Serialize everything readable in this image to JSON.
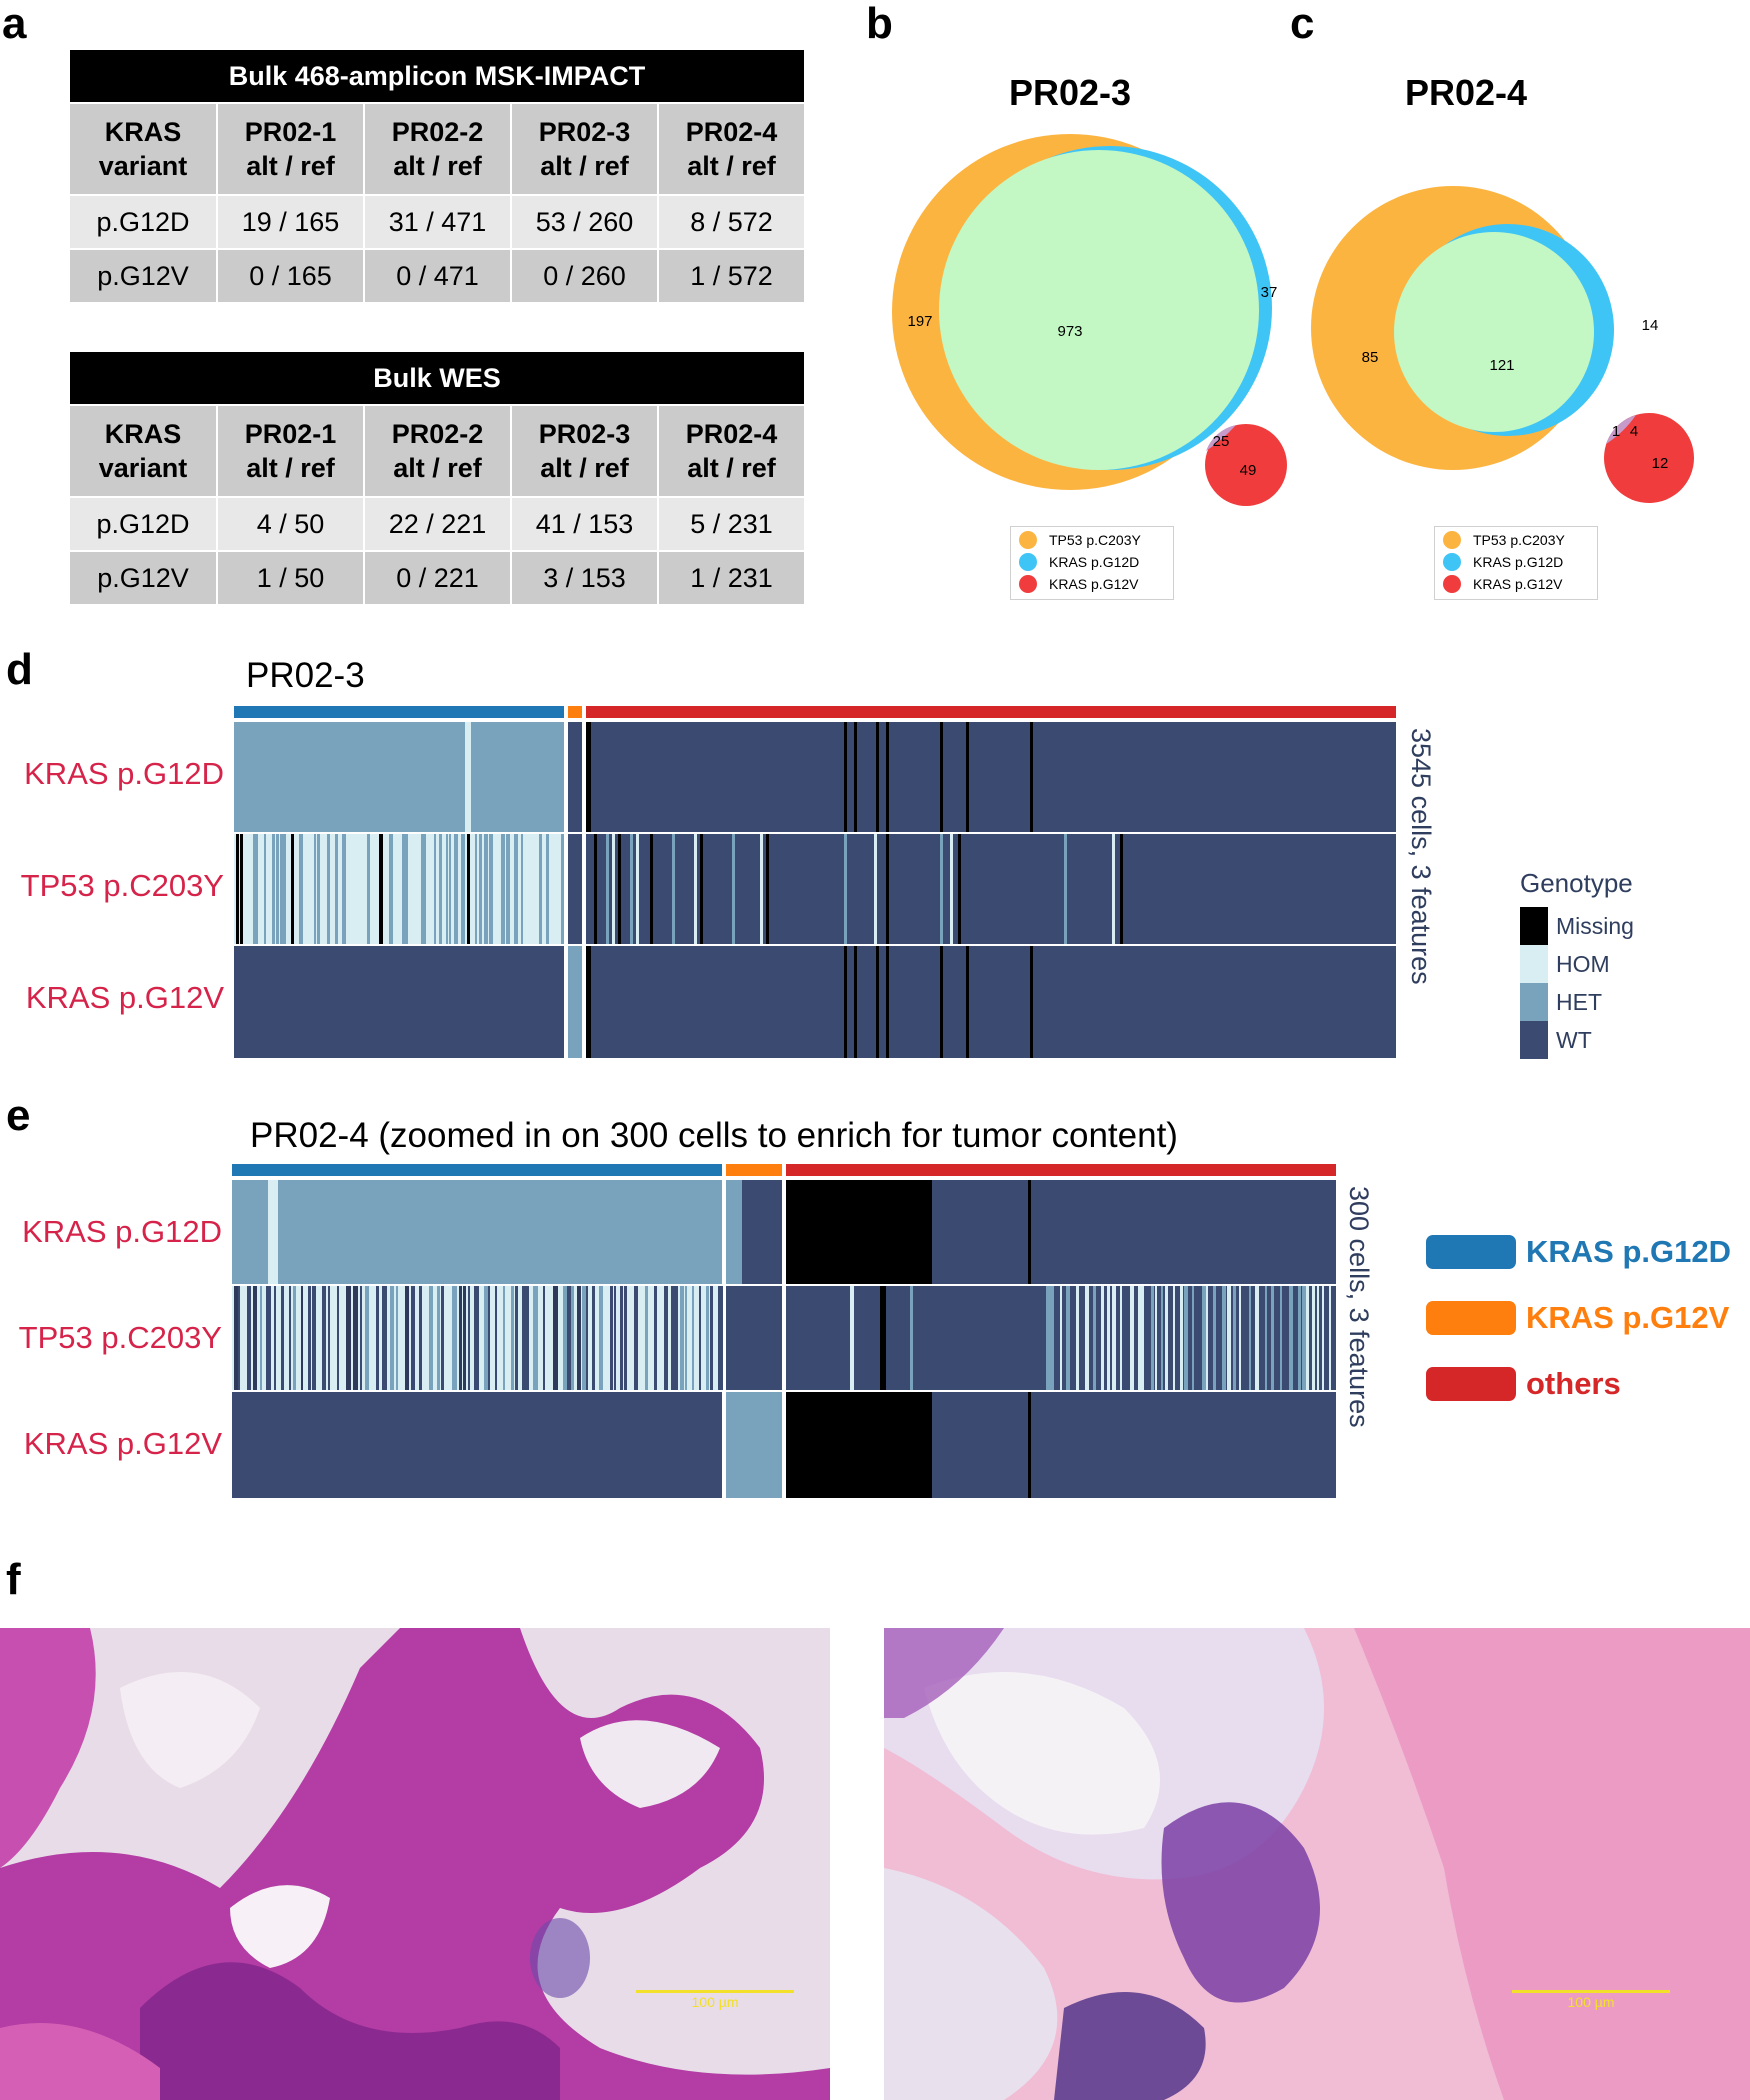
{
  "panel_labels": {
    "a": "a",
    "b": "b",
    "c": "c",
    "d": "d",
    "e": "e",
    "f": "f"
  },
  "colors": {
    "tp53": "#fcb441",
    "kras_g12d": "#3fc4f6",
    "kras_g12v": "#f03c3c",
    "overlap_green": "#c3f8c4",
    "missing": "#000000",
    "hom": "#d9eef2",
    "het": "#79a3bc",
    "wt": "#3b4a70",
    "cluster_g12d": "#1f77b4",
    "cluster_g12v": "#ff7f0e",
    "cluster_others": "#d62728",
    "row_label": "#d6234a"
  },
  "tables": [
    {
      "title": "Bulk 468-amplicon MSK-IMPACT",
      "header": [
        [
          "KRAS",
          "variant"
        ],
        [
          "PR02-1",
          "alt / ref"
        ],
        [
          "PR02-2",
          "alt / ref"
        ],
        [
          "PR02-3",
          "alt / ref"
        ],
        [
          "PR02-4",
          "alt / ref"
        ]
      ],
      "rows": [
        [
          "p.G12D",
          "19 / 165",
          "31 / 471",
          "53 / 260",
          "8 / 572"
        ],
        [
          "p.G12V",
          "0 / 165",
          "0 / 471",
          "0 / 260",
          "1 / 572"
        ]
      ]
    },
    {
      "title": "Bulk WES",
      "header": [
        [
          "KRAS",
          "variant"
        ],
        [
          "PR02-1",
          "alt / ref"
        ],
        [
          "PR02-2",
          "alt / ref"
        ],
        [
          "PR02-3",
          "alt / ref"
        ],
        [
          "PR02-4",
          "alt / ref"
        ]
      ],
      "rows": [
        [
          "p.G12D",
          "4 / 50",
          "22 / 221",
          "41 / 153",
          "5 / 231"
        ],
        [
          "p.G12V",
          "1 / 50",
          "0 / 221",
          "3 / 153",
          "1 / 231"
        ]
      ]
    }
  ],
  "venn_b": {
    "title": "PR02-3",
    "counts": {
      "tp53_only": "197",
      "tp53_g12d": "973",
      "g12d_only": "37",
      "overlap_g12v": "25",
      "g12v_only": "49"
    },
    "legend": [
      "TP53 p.C203Y",
      "KRAS p.G12D",
      "KRAS p.G12V"
    ]
  },
  "venn_c": {
    "title": "PR02-4",
    "counts": {
      "tp53_only": "85",
      "tp53_g12d": "121",
      "g12d_only": "14",
      "triple": "1",
      "g12d_g12v": "4",
      "g12v_only": "12"
    },
    "legend": [
      "TP53 p.C203Y",
      "KRAS p.G12D",
      "KRAS p.G12V"
    ]
  },
  "heatmap_d": {
    "title": "PR02-3",
    "rows": [
      "KRAS p.G12D",
      "TP53 p.C203Y",
      "KRAS p.G12V"
    ],
    "side_label": "3545 cells, 3 features"
  },
  "heatmap_e": {
    "title": "PR02-4 (zoomed in on 300 cells to enrich for tumor content)",
    "rows": [
      "KRAS p.G12D",
      "TP53 p.C203Y",
      "KRAS p.G12V"
    ],
    "side_label": "300 cells, 3 features"
  },
  "genotype_legend": {
    "title": "Genotype",
    "items": [
      "Missing",
      "HOM",
      "HET",
      "WT"
    ]
  },
  "cluster_legend": [
    "KRAS p.G12D",
    "KRAS p.G12V",
    "others"
  ],
  "scale_bar_label": "100 µm"
}
